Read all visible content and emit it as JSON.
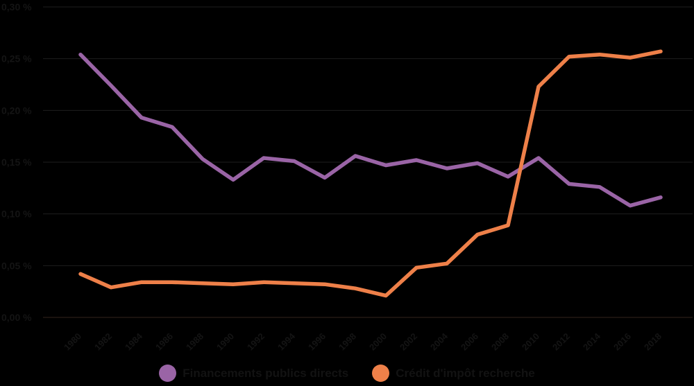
{
  "background_color": "#000000",
  "text_color": "#141414",
  "chart_data": {
    "type": "line",
    "title": "",
    "xlabel": "",
    "ylabel": "",
    "x": [
      1980,
      1982,
      1984,
      1986,
      1988,
      1990,
      1992,
      1994,
      1996,
      1998,
      2000,
      2002,
      2004,
      2006,
      2008,
      2010,
      2012,
      2014,
      2016,
      2018
    ],
    "series": [
      {
        "name": "Financements publics directs",
        "color": "#9a64a6",
        "values": [
          0.254,
          0.224,
          0.193,
          0.184,
          0.153,
          0.133,
          0.154,
          0.151,
          0.135,
          0.156,
          0.147,
          0.152,
          0.144,
          0.149,
          0.136,
          0.154,
          0.129,
          0.126,
          0.108,
          0.116
        ]
      },
      {
        "name": "Crédit d'impôt recherche",
        "color": "#ee8049",
        "values": [
          0.042,
          0.029,
          0.034,
          0.034,
          0.033,
          0.032,
          0.034,
          0.033,
          0.032,
          0.028,
          0.021,
          0.048,
          0.052,
          0.08,
          0.089,
          0.223,
          0.252,
          0.254,
          0.251,
          0.257
        ]
      }
    ],
    "ylim": [
      0.0,
      0.3
    ],
    "ytick_step": 0.05,
    "ytick_labels": [
      "0,00 %",
      "0,05 %",
      "0,10 %",
      "0,15 %",
      "0,20 %",
      "0,25 %",
      "0,30 %"
    ],
    "xtick_rotation_deg": 45,
    "grid": true,
    "legend_position": "bottom"
  }
}
